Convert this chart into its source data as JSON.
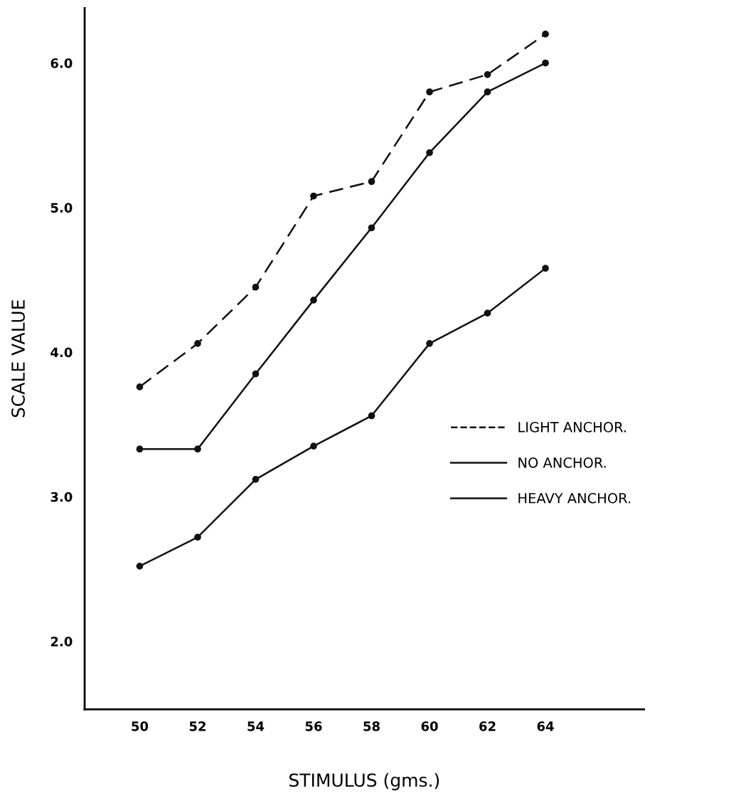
{
  "chart_data": {
    "type": "line",
    "xlabel": "STIMULUS (gms.)",
    "ylabel": "SCALE VALUE",
    "x": [
      50,
      52,
      54,
      56,
      58,
      60,
      62,
      64
    ],
    "xlim": [
      48.1,
      67.4
    ],
    "xticks": [
      50,
      52,
      54,
      56,
      58,
      60,
      62,
      64
    ],
    "ylim": [
      1.53,
      6.38
    ],
    "yticks": [
      {
        "value": 2,
        "label": "2.0"
      },
      {
        "value": 3,
        "label": "3.0"
      },
      {
        "value": 4,
        "label": "4.0"
      },
      {
        "value": 5,
        "label": "5.0"
      },
      {
        "value": 6,
        "label": "6.0"
      }
    ],
    "marker": "circle",
    "grid": false,
    "legend": "right",
    "series": [
      {
        "name": "LIGHT ANCHOR.",
        "color": "#111111",
        "line_style": "dashed",
        "values": [
          3.76,
          4.06,
          4.45,
          5.08,
          5.18,
          5.8,
          5.92,
          6.2
        ]
      },
      {
        "name": "NO ANCHOR.",
        "color": "#111111",
        "line_style": "solid",
        "values": [
          3.33,
          3.33,
          3.85,
          4.36,
          4.86,
          5.38,
          5.8,
          6.0
        ]
      },
      {
        "name": "HEAVY ANCHOR.",
        "color": "#111111",
        "line_style": "solid",
        "values": [
          2.52,
          2.72,
          3.12,
          3.35,
          3.56,
          4.06,
          4.27,
          4.58
        ]
      }
    ]
  }
}
